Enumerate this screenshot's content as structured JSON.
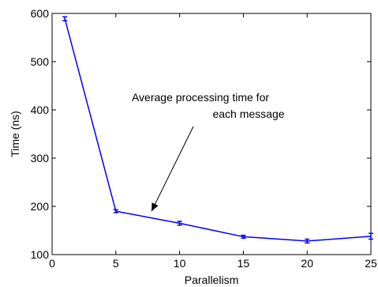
{
  "chart_data": {
    "type": "line",
    "xlabel": "Parallelism",
    "ylabel": "Time (ns)",
    "xlim": [
      0,
      25
    ],
    "ylim": [
      100,
      600
    ],
    "xticks": [
      0,
      5,
      10,
      15,
      20,
      25
    ],
    "yticks": [
      100,
      200,
      300,
      400,
      500,
      600
    ],
    "grid": false,
    "series": [
      {
        "x": [
          1,
          5,
          10,
          15,
          20,
          25
        ],
        "y": [
          589,
          190,
          165,
          137,
          128,
          138
        ],
        "error": [
          4,
          3,
          4,
          3,
          4,
          6
        ],
        "color": "#0000ff"
      }
    ],
    "annotation": {
      "lines": [
        "Average processing time for",
        "each message"
      ],
      "arrow_to": {
        "x": 7.8,
        "y": 190
      }
    }
  }
}
